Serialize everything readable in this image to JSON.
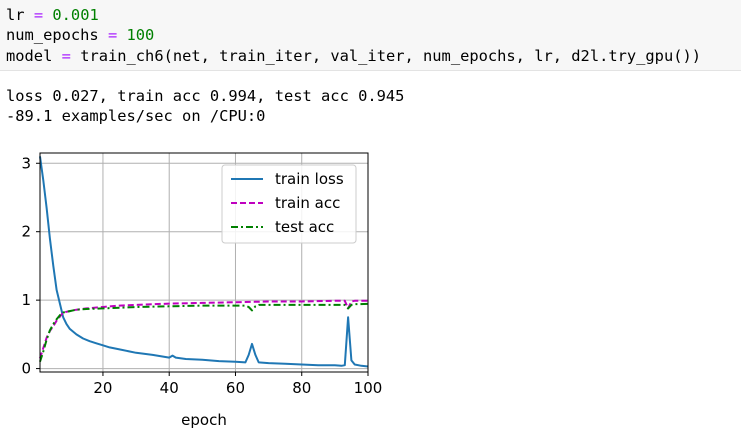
{
  "code": {
    "line1": {
      "var": "lr",
      "op": "=",
      "value": "0.001"
    },
    "line2": {
      "var": "num_epochs",
      "op": "=",
      "value": "100"
    },
    "line3": {
      "var": "model",
      "op": "=",
      "call": "train_ch6(net, train_iter, val_iter, num_epochs, lr, d2l.try_gpu())"
    }
  },
  "output": {
    "line1": "loss 0.027, train acc 0.994, test acc 0.945",
    "line2": "-89.1 examples/sec on /CPU:0"
  },
  "colors": {
    "keyword_op": "#aa22ff",
    "number": "#008000",
    "train_loss": "#1f77b4",
    "train_acc": "#bf00bf",
    "test_acc": "#008000"
  },
  "chart_data": {
    "type": "line",
    "xlabel": "epoch",
    "ylabel": "",
    "xlim": [
      1,
      100
    ],
    "ylim": [
      -0.05,
      3.15
    ],
    "xticks": [
      20,
      40,
      60,
      80,
      100
    ],
    "yticks": [
      0,
      1,
      2,
      3
    ],
    "xtick_labels": [
      "20",
      "40",
      "60",
      "80",
      "100"
    ],
    "ytick_labels": [
      "0",
      "1",
      "2",
      "3"
    ],
    "grid": true,
    "legend": {
      "placement": "top-right",
      "entries": [
        "train loss",
        "train acc",
        "test acc"
      ]
    },
    "series": [
      {
        "name": "train loss",
        "style": "solid",
        "x": [
          1,
          2,
          3,
          4,
          5,
          6,
          7,
          8,
          9,
          10,
          12,
          14,
          16,
          18,
          20,
          22,
          25,
          30,
          35,
          40,
          41,
          42,
          45,
          50,
          55,
          60,
          63,
          64,
          65,
          66,
          67,
          70,
          75,
          80,
          85,
          90,
          92,
          93,
          94,
          95,
          96,
          98,
          100
        ],
        "y": [
          3.1,
          2.75,
          2.35,
          1.9,
          1.5,
          1.15,
          0.95,
          0.75,
          0.65,
          0.58,
          0.5,
          0.44,
          0.4,
          0.37,
          0.34,
          0.31,
          0.28,
          0.23,
          0.2,
          0.16,
          0.19,
          0.16,
          0.14,
          0.13,
          0.11,
          0.1,
          0.09,
          0.2,
          0.36,
          0.2,
          0.09,
          0.08,
          0.07,
          0.06,
          0.05,
          0.05,
          0.04,
          0.05,
          0.75,
          0.12,
          0.06,
          0.04,
          0.03
        ]
      },
      {
        "name": "train acc",
        "style": "dashed",
        "x": [
          1,
          2,
          3,
          4,
          5,
          6,
          7,
          8,
          10,
          12,
          15,
          20,
          25,
          30,
          40,
          50,
          60,
          70,
          80,
          90,
          93,
          94,
          95,
          96,
          100
        ],
        "y": [
          0.15,
          0.3,
          0.45,
          0.55,
          0.62,
          0.7,
          0.76,
          0.82,
          0.84,
          0.86,
          0.88,
          0.9,
          0.92,
          0.93,
          0.95,
          0.96,
          0.97,
          0.98,
          0.98,
          0.99,
          0.99,
          0.88,
          0.98,
          0.99,
          0.99
        ]
      },
      {
        "name": "test acc",
        "style": "dashdot",
        "x": [
          1,
          2,
          3,
          4,
          5,
          6,
          7,
          8,
          10,
          12,
          15,
          20,
          25,
          30,
          40,
          50,
          60,
          63,
          64,
          65,
          66,
          67,
          70,
          80,
          90,
          93,
          94,
          95,
          96,
          100
        ],
        "y": [
          0.1,
          0.25,
          0.42,
          0.56,
          0.65,
          0.72,
          0.78,
          0.82,
          0.84,
          0.86,
          0.87,
          0.88,
          0.89,
          0.9,
          0.91,
          0.92,
          0.92,
          0.92,
          0.9,
          0.85,
          0.91,
          0.93,
          0.93,
          0.93,
          0.93,
          0.93,
          0.88,
          0.93,
          0.94,
          0.945
        ]
      }
    ]
  }
}
